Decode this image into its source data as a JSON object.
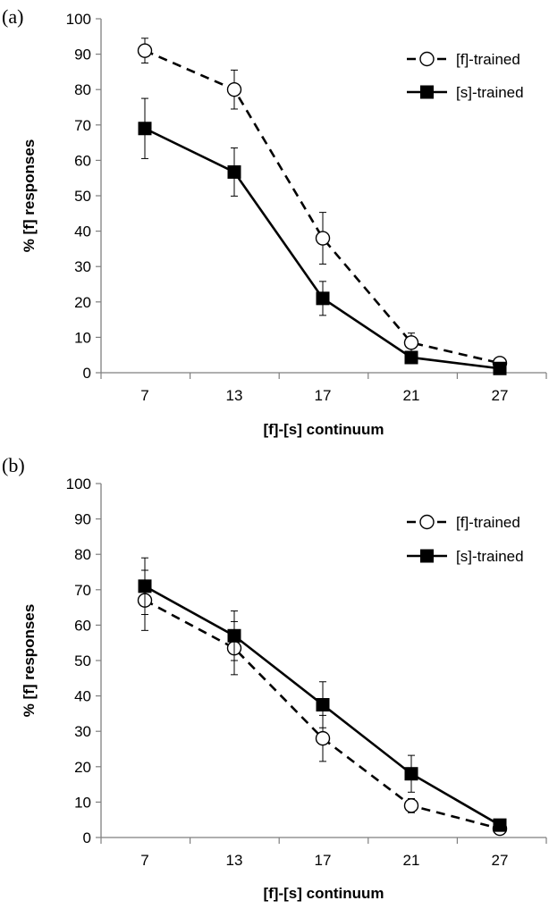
{
  "colors": {
    "axis": "#7f7f7f",
    "series": "#000000",
    "background": "#ffffff"
  },
  "chart_data": [
    {
      "type": "line",
      "panel_label": "(a)",
      "xlabel": "[f]-[s] continuum",
      "ylabel": "% [f] responses",
      "categories": [
        "7",
        "13",
        "17",
        "21",
        "27"
      ],
      "ylim": [
        0,
        100
      ],
      "yticks": [
        "0",
        "10",
        "20",
        "30",
        "40",
        "50",
        "60",
        "70",
        "80",
        "90",
        "100"
      ],
      "grid": false,
      "legend_position": "top-right",
      "series": [
        {
          "name": "[f]-trained",
          "marker": "open-circle",
          "dash": "dashed",
          "values": [
            91,
            80,
            38,
            8.5,
            2.7
          ],
          "errors": [
            3.5,
            5.5,
            7.3,
            2.7,
            1.0
          ]
        },
        {
          "name": "[s]-trained",
          "marker": "filled-square",
          "dash": "solid",
          "values": [
            69,
            56.7,
            21,
            4.3,
            1.2
          ],
          "errors": [
            8.5,
            6.8,
            4.8,
            1.5,
            0.6
          ]
        }
      ]
    },
    {
      "type": "line",
      "panel_label": "(b)",
      "xlabel": "[f]-[s] continuum",
      "ylabel": "% [f] responses",
      "categories": [
        "7",
        "13",
        "17",
        "21",
        "27"
      ],
      "ylim": [
        0,
        100
      ],
      "yticks": [
        "0",
        "10",
        "20",
        "30",
        "40",
        "50",
        "60",
        "70",
        "80",
        "90",
        "100"
      ],
      "grid": false,
      "legend_position": "top-right",
      "series": [
        {
          "name": "[f]-trained",
          "marker": "open-circle",
          "dash": "dashed",
          "values": [
            67,
            53.5,
            28,
            9,
            2.5
          ],
          "errors": [
            8.5,
            7.5,
            6.5,
            2.0,
            0.8
          ]
        },
        {
          "name": "[s]-trained",
          "marker": "filled-square",
          "dash": "solid",
          "values": [
            71,
            57,
            37.5,
            18,
            3.5
          ],
          "errors": [
            8.0,
            7.0,
            6.5,
            5.2,
            1.2
          ]
        }
      ]
    }
  ]
}
